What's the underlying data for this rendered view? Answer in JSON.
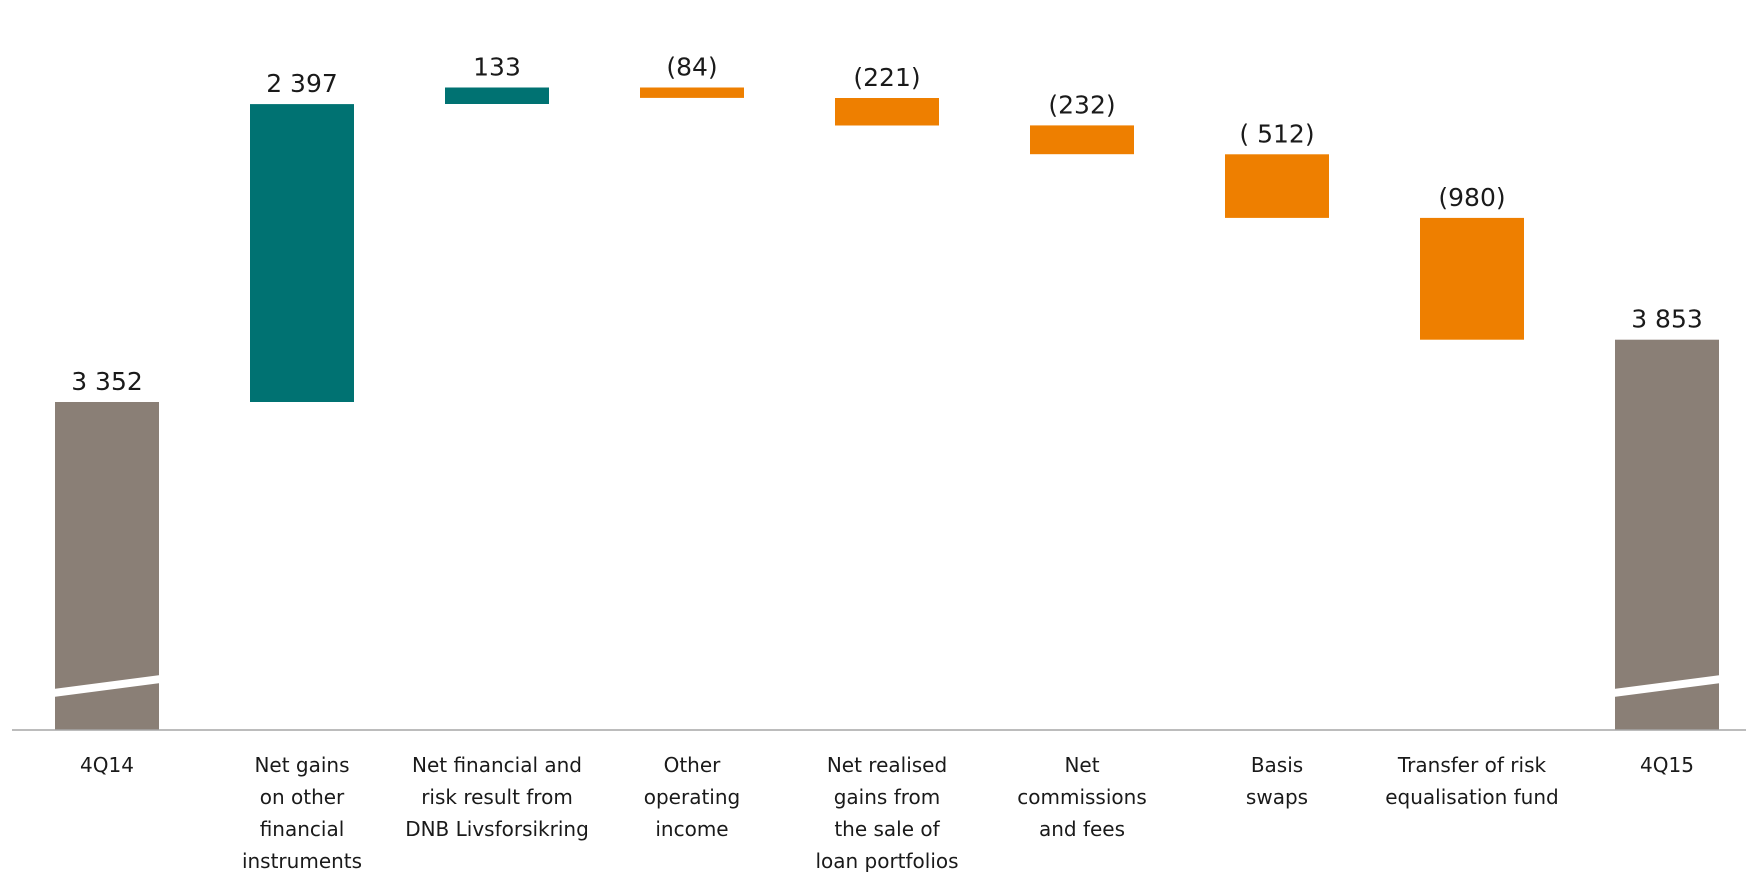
{
  "chart_data": {
    "type": "bar",
    "subtype": "waterfall",
    "title": "",
    "xlabel": "",
    "ylabel": "",
    "axis_break": true,
    "grid": false,
    "legend": "none",
    "colors": {
      "total": "#8a7f76",
      "increase": "#007272",
      "decrease": "#ee7f00",
      "axis": "#a6a6a6"
    },
    "categories": [
      [
        "4Q14"
      ],
      [
        "Net gains",
        "on other",
        "financial",
        "instruments"
      ],
      [
        "Net financial and",
        "risk result from",
        "DNB Livsforsikring"
      ],
      [
        "Other",
        "operating",
        "income"
      ],
      [
        "Net realised",
        "gains from",
        "the sale of",
        "loan portfolios"
      ],
      [
        "Net",
        "commissions",
        "and fees"
      ],
      [
        "Basis",
        "swaps"
      ],
      [
        "Transfer of risk",
        "equalisation fund"
      ],
      [
        "4Q15"
      ]
    ],
    "kinds": [
      "total",
      "increase",
      "increase",
      "decrease",
      "decrease",
      "decrease",
      "decrease",
      "decrease",
      "total"
    ],
    "values": [
      3352,
      2397,
      133,
      -84,
      -221,
      -232,
      -512,
      -980,
      3853
    ],
    "labels": [
      "3 352",
      "2 397",
      "133",
      "(84)",
      "(221)",
      "(232)",
      "( 512)",
      "(980)",
      "3 853"
    ]
  }
}
